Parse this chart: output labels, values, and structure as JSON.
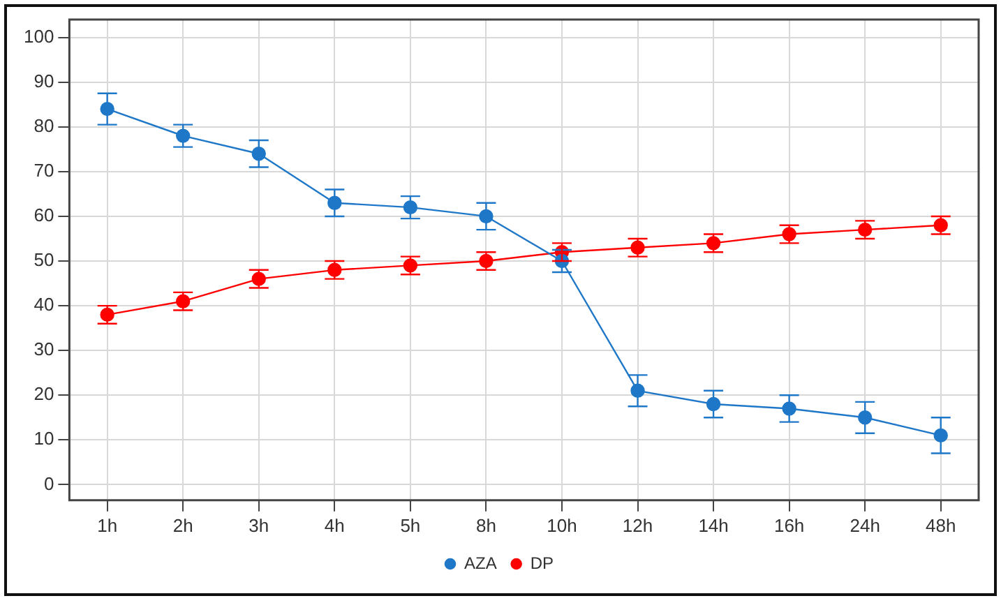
{
  "chart_data": {
    "type": "line",
    "categories": [
      "1h",
      "2h",
      "3h",
      "4h",
      "5h",
      "8h",
      "10h",
      "12h",
      "14h",
      "16h",
      "24h",
      "48h"
    ],
    "series": [
      {
        "name": "AZA",
        "color": "#1f77c8",
        "values": [
          84,
          78,
          74,
          63,
          62,
          60,
          50,
          21,
          18,
          17,
          15,
          11
        ],
        "errors": [
          3.5,
          2.5,
          3,
          3,
          2.5,
          3,
          2.5,
          3.5,
          3,
          3,
          3.5,
          4
        ]
      },
      {
        "name": "DP",
        "color": "#ff0000",
        "values": [
          38,
          41,
          46,
          48,
          49,
          50,
          52,
          53,
          54,
          56,
          57,
          58
        ],
        "errors": [
          2,
          2,
          2,
          2,
          2,
          2,
          2,
          2,
          2,
          2,
          2,
          2
        ]
      }
    ],
    "ylim": [
      -3.5,
      104
    ],
    "yticks": [
      0,
      10,
      20,
      30,
      40,
      50,
      60,
      70,
      80,
      90,
      100
    ],
    "grid": true,
    "legend": "bottom",
    "marker": "circle",
    "line_style": "solid"
  }
}
